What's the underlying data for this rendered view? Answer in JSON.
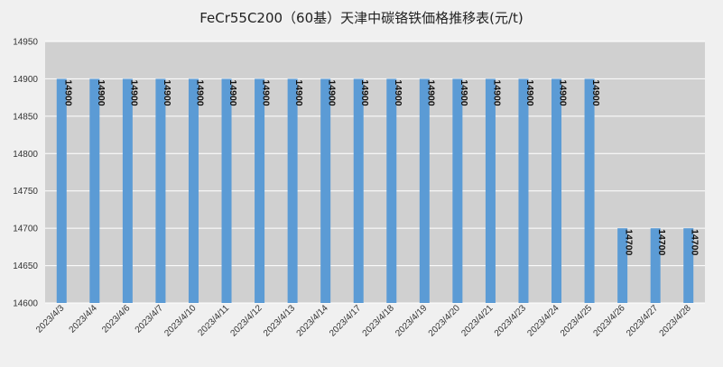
{
  "title": "FeCr55C200（60基）天津中碳铬铁価格推移表(元/t)",
  "chart_data": {
    "type": "bar",
    "title": "FeCr55C200（60基）天津中碳铬铁価格推移表(元/t)",
    "xlabel": "",
    "ylabel": "",
    "ylim": [
      14600,
      14950
    ],
    "yticks": [
      14600,
      14650,
      14700,
      14750,
      14800,
      14850,
      14900,
      14950
    ],
    "grid": true,
    "legend": "none",
    "bar_color": "#5b9bd5",
    "plot_background": "#d0d0d0",
    "categories": [
      "2023/4/3",
      "2023/4/4",
      "2023/4/6",
      "2023/4/7",
      "2023/4/10",
      "2023/4/11",
      "2023/4/12",
      "2023/4/13",
      "2023/4/14",
      "2023/4/17",
      "2023/4/18",
      "2023/4/19",
      "2023/4/20",
      "2023/4/21",
      "2023/4/23",
      "2023/4/24",
      "2023/4/25",
      "2023/4/26",
      "2023/4/27",
      "2023/4/28"
    ],
    "values": [
      14900,
      14900,
      14900,
      14900,
      14900,
      14900,
      14900,
      14900,
      14900,
      14900,
      14900,
      14900,
      14900,
      14900,
      14900,
      14900,
      14900,
      14700,
      14700,
      14700
    ],
    "data_labels": [
      "14900",
      "14900",
      "14900",
      "14900",
      "14900",
      "14900",
      "14900",
      "14900",
      "14900",
      "14900",
      "14900",
      "14900",
      "14900",
      "14900",
      "14900",
      "14900",
      "14900",
      "14700",
      "14700",
      "14700"
    ]
  }
}
